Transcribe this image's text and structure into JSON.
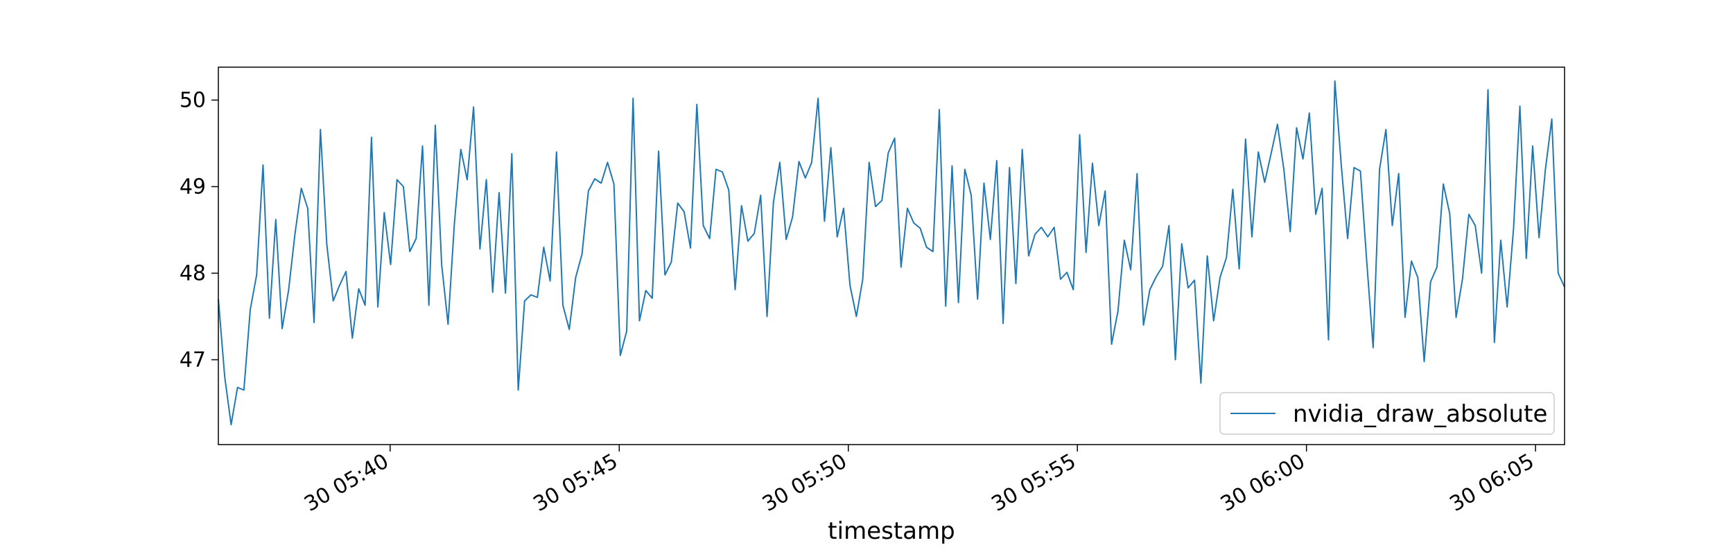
{
  "chart_data": {
    "type": "line",
    "title": "",
    "xlabel": "timestamp",
    "ylabel": "",
    "x_start": "2023-xx-30 05:36:15",
    "x_end": "2023-xx-30 06:05:38",
    "x_ticks": [
      "30 05:40",
      "30 05:45",
      "30 05:50",
      "30 05:55",
      "30 06:00",
      "30 06:05"
    ],
    "y_ticks": [
      "47",
      "48",
      "49",
      "50"
    ],
    "ylim": [
      46.02,
      50.38
    ],
    "grid": false,
    "legend_position": "bottom-right",
    "colors": {
      "line": "#1f77b4",
      "axes": "#000000",
      "legend_border": "#cccccc"
    },
    "series": [
      {
        "name": "nvidia_draw_absolute",
        "values": [
          47.7,
          46.8,
          46.25,
          46.68,
          46.65,
          47.58,
          47.98,
          49.25,
          47.48,
          48.62,
          47.36,
          47.8,
          48.45,
          48.98,
          48.75,
          47.43,
          49.66,
          48.33,
          47.68,
          47.86,
          48.02,
          47.25,
          47.82,
          47.63,
          49.57,
          47.61,
          48.7,
          48.1,
          49.08,
          49.0,
          48.25,
          48.4,
          49.47,
          47.63,
          49.71,
          48.1,
          47.41,
          48.58,
          49.43,
          49.08,
          49.92,
          48.28,
          49.08,
          47.78,
          48.93,
          47.77,
          49.38,
          46.65,
          47.68,
          47.75,
          47.72,
          48.3,
          47.91,
          49.4,
          47.63,
          47.35,
          47.95,
          48.22,
          48.95,
          49.09,
          49.04,
          49.28,
          49.03,
          47.05,
          47.33,
          50.02,
          47.45,
          47.8,
          47.71,
          49.41,
          47.98,
          48.13,
          48.81,
          48.71,
          48.29,
          49.95,
          48.55,
          48.4,
          49.2,
          49.17,
          48.96,
          47.81,
          48.78,
          48.37,
          48.46,
          48.9,
          47.5,
          48.82,
          49.28,
          48.39,
          48.65,
          49.29,
          49.1,
          49.28,
          50.02,
          48.6,
          49.45,
          48.42,
          48.75,
          47.86,
          47.5,
          47.93,
          49.28,
          48.77,
          48.84,
          49.39,
          49.56,
          48.07,
          48.75,
          48.58,
          48.52,
          48.3,
          48.25,
          49.89,
          47.62,
          49.24,
          47.66,
          49.2,
          48.9,
          47.7,
          49.04,
          48.39,
          49.3,
          47.42,
          49.22,
          47.88,
          49.43,
          48.2,
          48.45,
          48.53,
          48.42,
          48.53,
          47.93,
          48.01,
          47.81,
          49.6,
          48.24,
          49.27,
          48.55,
          48.95,
          47.18,
          47.56,
          48.38,
          48.04,
          49.15,
          47.4,
          47.81,
          47.96,
          48.08,
          48.55,
          47.0,
          48.34,
          47.83,
          47.92,
          46.73,
          48.2,
          47.45,
          47.95,
          48.18,
          48.97,
          48.05,
          49.55,
          48.42,
          49.4,
          49.05,
          49.38,
          49.72,
          49.2,
          48.48,
          49.68,
          49.32,
          49.85,
          48.68,
          48.98,
          47.23,
          50.22,
          49.25,
          48.4,
          49.22,
          49.18,
          48.13,
          47.14,
          49.2,
          49.66,
          48.55,
          49.15,
          47.49,
          48.14,
          47.95,
          46.98,
          47.9,
          48.07,
          49.03,
          48.69,
          47.49,
          47.93,
          48.68,
          48.55,
          48.0,
          50.12,
          47.2,
          48.38,
          47.61,
          48.51,
          49.93,
          48.17,
          49.47,
          48.41,
          49.2,
          49.78,
          48.0,
          47.84
        ]
      }
    ]
  }
}
